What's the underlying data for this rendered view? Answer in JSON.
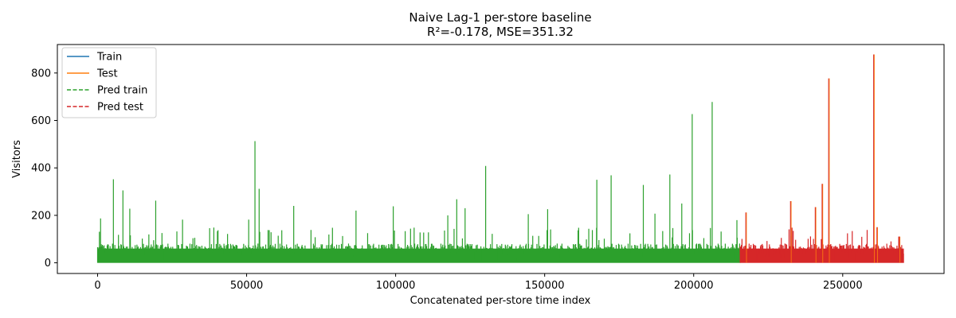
{
  "chart_data": {
    "type": "line",
    "title": "Naive Lag-1 per-store baseline",
    "subtitle": "R²=-0.178, MSE=351.32",
    "xlabel": "Concatenated per-store time index",
    "ylabel": "Visitors",
    "xlim": [
      -13500,
      284000
    ],
    "ylim": [
      -45,
      920
    ],
    "xticks": [
      0,
      50000,
      100000,
      150000,
      200000,
      250000
    ],
    "xtick_labels": [
      "0",
      "50000",
      "100000",
      "150000",
      "200000",
      "250000"
    ],
    "yticks": [
      0,
      200,
      400,
      600,
      800
    ],
    "ytick_labels": [
      "0",
      "200",
      "400",
      "600",
      "800"
    ],
    "grid": false,
    "legend_position": "top-left",
    "train_end_index": 215600,
    "series": [
      {
        "name": "Train",
        "color": "#1f77b4",
        "dash": "solid"
      },
      {
        "name": "Test",
        "color": "#ff7f0e",
        "dash": "solid"
      },
      {
        "name": "Pred train",
        "color": "#2ca02c",
        "dash": "dashed"
      },
      {
        "name": "Pred test",
        "color": "#d62728",
        "dash": "dashed"
      }
    ],
    "notable_peaks": [
      {
        "x": 1000,
        "y": 187
      },
      {
        "x": 5300,
        "y": 352
      },
      {
        "x": 8500,
        "y": 305
      },
      {
        "x": 10800,
        "y": 228
      },
      {
        "x": 19500,
        "y": 262
      },
      {
        "x": 28500,
        "y": 182
      },
      {
        "x": 50700,
        "y": 182
      },
      {
        "x": 52800,
        "y": 513
      },
      {
        "x": 54200,
        "y": 312
      },
      {
        "x": 65800,
        "y": 240
      },
      {
        "x": 86700,
        "y": 220
      },
      {
        "x": 99200,
        "y": 238
      },
      {
        "x": 117500,
        "y": 200
      },
      {
        "x": 120500,
        "y": 268
      },
      {
        "x": 123300,
        "y": 230
      },
      {
        "x": 130200,
        "y": 408
      },
      {
        "x": 144500,
        "y": 205
      },
      {
        "x": 151000,
        "y": 226
      },
      {
        "x": 167500,
        "y": 350
      },
      {
        "x": 172300,
        "y": 369
      },
      {
        "x": 183100,
        "y": 328
      },
      {
        "x": 187000,
        "y": 207
      },
      {
        "x": 192000,
        "y": 372
      },
      {
        "x": 196000,
        "y": 250
      },
      {
        "x": 199500,
        "y": 627
      },
      {
        "x": 206200,
        "y": 678
      },
      {
        "x": 214500,
        "y": 180
      },
      {
        "x": 217500,
        "y": 212
      },
      {
        "x": 232500,
        "y": 260
      },
      {
        "x": 240800,
        "y": 235
      },
      {
        "x": 243100,
        "y": 333
      },
      {
        "x": 245300,
        "y": 777
      },
      {
        "x": 260400,
        "y": 878
      },
      {
        "x": 261500,
        "y": 150
      },
      {
        "x": 269000,
        "y": 110
      }
    ]
  }
}
